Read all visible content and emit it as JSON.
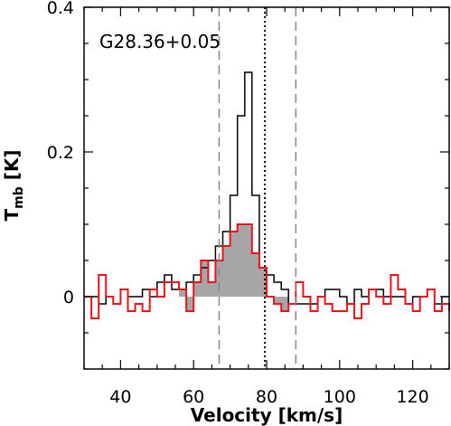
{
  "chart_data": {
    "type": "line",
    "title": "",
    "annotation": "G28.36+0.05",
    "xlabel": "Velocity [km/s]",
    "ylabel_main": "T",
    "ylabel_sub": "mb",
    "ylabel_unit": " [K]",
    "xlim": [
      30,
      130
    ],
    "ylim": [
      -0.1,
      0.4
    ],
    "xticks": [
      40,
      60,
      80,
      100,
      120
    ],
    "yticks": [
      0,
      0.2,
      0.4
    ],
    "ytick_labels": [
      "0",
      "0.2",
      "0.4"
    ],
    "x_step": 2,
    "x_start": 30,
    "grid": false,
    "series": [
      {
        "color": "#000000",
        "values": [
          0.0,
          0.0,
          -0.01,
          0.0,
          -0.01,
          0.01,
          0.0,
          0.0,
          0.01,
          0.0,
          0.02,
          0.03,
          0.01,
          0.01,
          0.02,
          0.03,
          0.04,
          0.05,
          0.07,
          0.09,
          0.14,
          0.25,
          0.31,
          0.14,
          0.04,
          0.03,
          0.02,
          0.01,
          -0.01,
          -0.01,
          -0.01,
          -0.01,
          0.0,
          0.01,
          0.01,
          0.0,
          -0.01,
          0.01,
          0.0,
          0.01,
          0.01,
          0.0,
          0.0,
          0.0,
          -0.01,
          0.0,
          0.0,
          0.01,
          -0.01,
          0.0,
          0.0
        ]
      },
      {
        "color": "#e8141c",
        "values": [
          0.0,
          -0.03,
          0.03,
          0.0,
          -0.01,
          0.01,
          -0.02,
          -0.01,
          -0.02,
          0.01,
          0.0,
          0.02,
          0.02,
          0.01,
          -0.02,
          0.02,
          0.05,
          0.02,
          0.05,
          0.07,
          0.09,
          0.1,
          0.1,
          0.06,
          0.04,
          0.0,
          -0.01,
          -0.02,
          -0.01,
          0.02,
          0.0,
          -0.02,
          0.0,
          -0.01,
          -0.02,
          -0.02,
          -0.01,
          -0.03,
          -0.01,
          0.01,
          0.0,
          -0.01,
          0.03,
          0.01,
          -0.01,
          -0.02,
          0.0,
          0.01,
          -0.02,
          -0.01,
          -0.02
        ]
      }
    ],
    "shaded_region": {
      "x_from": 56,
      "x_to": 86,
      "series_index": 1,
      "color": "#a6a6a6"
    },
    "vlines": [
      {
        "x": 67,
        "style": "dashed",
        "color": "#888888"
      },
      {
        "x": 79.5,
        "style": "dotted",
        "color": "#000000"
      },
      {
        "x": 88,
        "style": "dashed",
        "color": "#888888"
      }
    ]
  }
}
